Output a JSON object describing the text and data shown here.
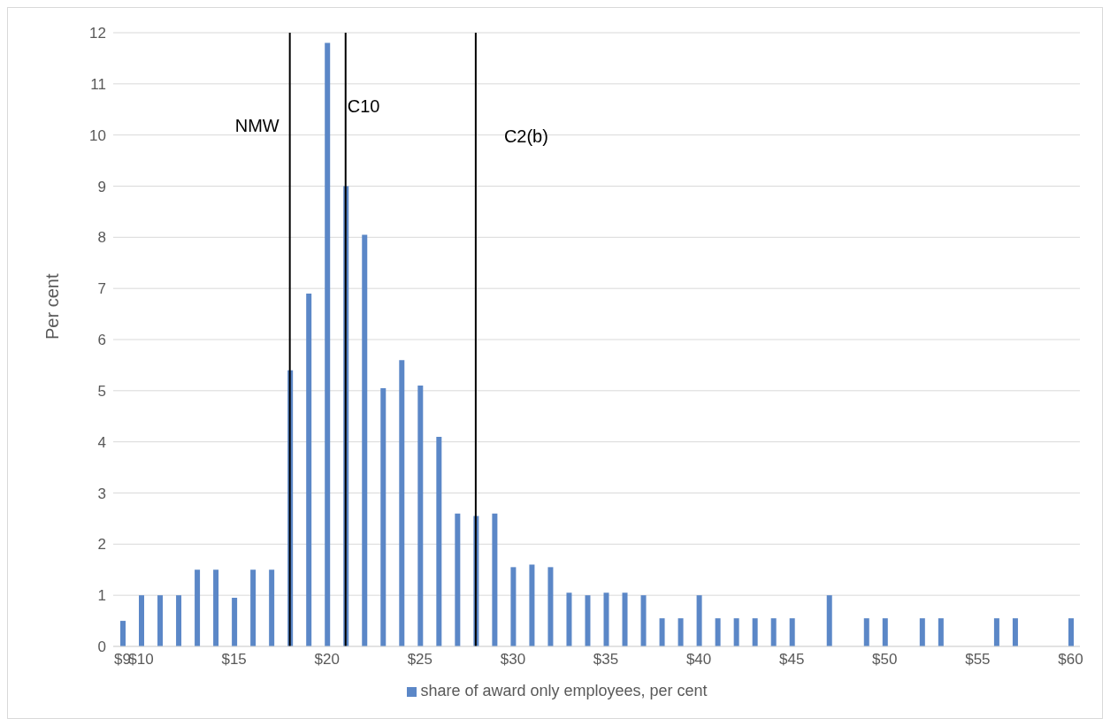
{
  "chart_data": {
    "type": "bar",
    "ylabel": "Per cent",
    "x": [
      9,
      10,
      11,
      12,
      13,
      14,
      15,
      16,
      17,
      18,
      19,
      20,
      21,
      22,
      23,
      24,
      25,
      26,
      27,
      28,
      29,
      30,
      31,
      32,
      33,
      34,
      35,
      36,
      37,
      38,
      39,
      40,
      41,
      42,
      43,
      44,
      45,
      46,
      47,
      48,
      49,
      50,
      51,
      52,
      53,
      54,
      55,
      56,
      57,
      58,
      59,
      60
    ],
    "series": [
      {
        "name": "share of award only employees, per cent",
        "color": "#5b87c7",
        "values": [
          0.5,
          1,
          1,
          1,
          1.5,
          1.5,
          0.95,
          1.5,
          1.5,
          5.4,
          6.9,
          11.8,
          9,
          8.05,
          5.05,
          5.6,
          5.1,
          4.1,
          2.6,
          2.55,
          2.6,
          1.55,
          1.6,
          1.55,
          1.05,
          1,
          1.05,
          1.05,
          1,
          0.55,
          0.55,
          1,
          0.55,
          0.55,
          0.55,
          0.55,
          0.55,
          null,
          1,
          null,
          0.55,
          0.55,
          null,
          0.55,
          0.55,
          null,
          null,
          0.55,
          0.55,
          null,
          null,
          0.55
        ]
      }
    ],
    "xlim": [
      8.5,
      60.5
    ],
    "xticks": [
      {
        "value": 9,
        "label": "$9"
      },
      {
        "value": 10,
        "label": "$10"
      },
      {
        "value": 15,
        "label": "$15"
      },
      {
        "value": 20,
        "label": "$20"
      },
      {
        "value": 25,
        "label": "$25"
      },
      {
        "value": 30,
        "label": "$30"
      },
      {
        "value": 35,
        "label": "$35"
      },
      {
        "value": 40,
        "label": "$40"
      },
      {
        "value": 45,
        "label": "$45"
      },
      {
        "value": 50,
        "label": "$50"
      },
      {
        "value": 55,
        "label": "$55"
      },
      {
        "value": 60,
        "label": "$60"
      }
    ],
    "ylim": [
      0,
      12
    ],
    "yticks": [
      0,
      1,
      2,
      3,
      4,
      5,
      6,
      7,
      8,
      9,
      10,
      11,
      12
    ],
    "ref_lines": [
      {
        "axis": "x",
        "value": 18,
        "label": "NMW",
        "color": "#000000"
      },
      {
        "axis": "x",
        "value": 21,
        "label": "C10",
        "color": "#000000"
      },
      {
        "axis": "x",
        "value": 28,
        "label": "C2(b)",
        "color": "#000000"
      }
    ],
    "grid": "y",
    "legend": "bottom"
  }
}
